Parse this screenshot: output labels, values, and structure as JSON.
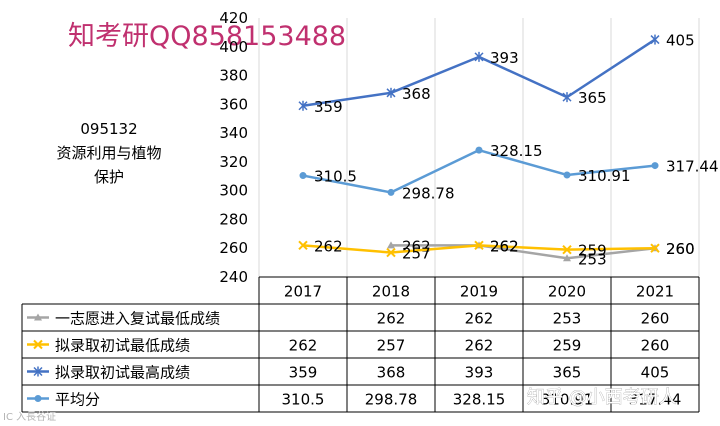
{
  "watermark_title": "知考研QQ858153488",
  "watermark_bottom": "知乎 @小西考研人",
  "watermark_corner": "IC  入長谷证",
  "side_code": "095132",
  "side_name_line1": "资源利用与植物",
  "side_name_line2": "保护",
  "chart_data": {
    "type": "line",
    "categories": [
      "2017",
      "2018",
      "2019",
      "2020",
      "2021"
    ],
    "ylim": [
      240,
      420
    ],
    "y_ticks": [
      "240",
      "260",
      "280",
      "300",
      "320",
      "340",
      "360",
      "380",
      "400",
      "420"
    ],
    "grid": "vertical",
    "legend": "table-left",
    "series": [
      {
        "name": "一志愿进入复试最低成绩",
        "values": [
          null,
          262,
          262,
          253,
          260
        ],
        "labels": [
          "",
          "262",
          "262",
          "253",
          "260"
        ],
        "table_values": [
          "",
          "262",
          "262",
          "253",
          "260"
        ],
        "color": "#a5a5a5",
        "marker": "triangle"
      },
      {
        "name": "拟录取初试最低成绩",
        "values": [
          262,
          257,
          262,
          259,
          260
        ],
        "labels": [
          "262",
          "257",
          "262",
          "259",
          "260"
        ],
        "table_values": [
          "262",
          "257",
          "262",
          "259",
          "260"
        ],
        "color": "#ffc000",
        "marker": "x"
      },
      {
        "name": "拟录取初试最高成绩",
        "values": [
          359,
          368,
          393,
          365,
          405
        ],
        "labels": [
          "359",
          "368",
          "393",
          "365",
          "405"
        ],
        "table_values": [
          "359",
          "368",
          "393",
          "365",
          "405"
        ],
        "color": "#4472c4",
        "marker": "star"
      },
      {
        "name": "平均分",
        "values": [
          310.5,
          298.78,
          328.15,
          310.91,
          317.44
        ],
        "labels": [
          "310.5",
          "298.78",
          "328.15",
          "310.91",
          "317.44"
        ],
        "table_values": [
          "310.5",
          "298.78",
          "328.15",
          "310.91",
          "317.44"
        ],
        "color": "#5b9bd5",
        "marker": "circle"
      }
    ]
  }
}
